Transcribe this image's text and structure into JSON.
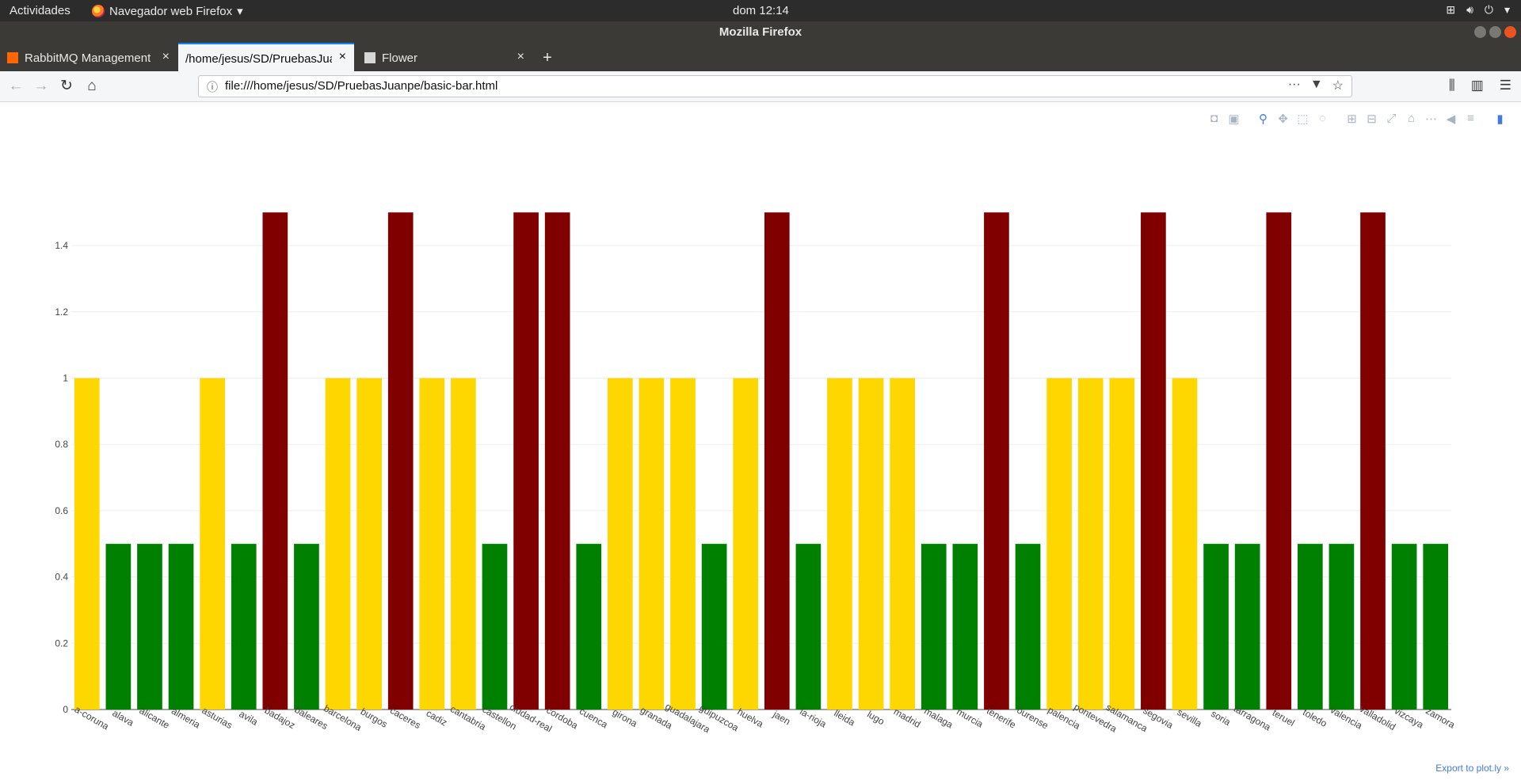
{
  "system_bar": {
    "activities": "Actividades",
    "app_name": "Navegador web Firefox",
    "app_caret": "▾",
    "clock": "dom 12:14"
  },
  "window": {
    "title": "Mozilla Firefox"
  },
  "tabs": [
    {
      "label": "RabbitMQ Management",
      "icon": "rabbitmq-icon"
    },
    {
      "label": "/home/jesus/SD/PruebasJuanpe/basic-bar.html",
      "icon": "none",
      "active": true
    },
    {
      "label": "Flower",
      "icon": "celery-icon"
    }
  ],
  "new_tab": "+",
  "close_tab": "×",
  "navigation": {
    "url": "file:///home/jesus/SD/PruebasJuanpe/basic-bar.html"
  },
  "plot": {
    "export_link": "Export to plot.ly »"
  },
  "colors": {
    "yellow": "#ffd700",
    "green": "#008000",
    "dark_red": "#800000",
    "accent": "#447adb"
  },
  "chart_data": {
    "type": "bar",
    "title": "",
    "xlabel": "",
    "ylabel": "",
    "ylim": [
      0,
      1.5
    ],
    "yticks": [
      0,
      0.2,
      0.4,
      0.6,
      0.8,
      1,
      1.2,
      1.4
    ],
    "ytick_labels": [
      "0",
      "0.2",
      "0.4",
      "0.6",
      "0.8",
      "1",
      "1.2",
      "1.4"
    ],
    "grid": true,
    "categories": [
      "a-coruna",
      "alava",
      "alicante",
      "almeria",
      "asturias",
      "avila",
      "badajoz",
      "baleares",
      "barcelona",
      "burgos",
      "caceres",
      "cadiz",
      "cantabria",
      "castellon",
      "ciudad-real",
      "cordoba",
      "cuenca",
      "girona",
      "granada",
      "guadalajara",
      "guipuzcoa",
      "huelva",
      "jaen",
      "la-rioja",
      "lleida",
      "lugo",
      "madrid",
      "malaga",
      "murcia",
      "tenerife",
      "ourense",
      "palencia",
      "pontevedra",
      "salamanca",
      "segovia",
      "sevilla",
      "soria",
      "tarragona",
      "teruel",
      "toledo",
      "valencia",
      "valladolid",
      "vizcaya",
      "zamora"
    ],
    "values": [
      1,
      0.5,
      0.5,
      0.5,
      1,
      0.5,
      1.5,
      0.5,
      1,
      1,
      1.5,
      1,
      1,
      0.5,
      1.5,
      1.5,
      0.5,
      1,
      1,
      1,
      0.5,
      1,
      1.5,
      0.5,
      1,
      1,
      1,
      0.5,
      0.5,
      1.5,
      0.5,
      1,
      1,
      1,
      1.5,
      1,
      0.5,
      0.5,
      1.5,
      0.5,
      0.5,
      1.5,
      0.5,
      0.5
    ],
    "bar_colors": [
      "#ffd700",
      "#008000",
      "#008000",
      "#008000",
      "#ffd700",
      "#008000",
      "#800000",
      "#008000",
      "#ffd700",
      "#ffd700",
      "#800000",
      "#ffd700",
      "#ffd700",
      "#008000",
      "#800000",
      "#800000",
      "#008000",
      "#ffd700",
      "#ffd700",
      "#ffd700",
      "#008000",
      "#ffd700",
      "#800000",
      "#008000",
      "#ffd700",
      "#ffd700",
      "#ffd700",
      "#008000",
      "#008000",
      "#800000",
      "#008000",
      "#ffd700",
      "#ffd700",
      "#ffd700",
      "#800000",
      "#ffd700",
      "#008000",
      "#008000",
      "#800000",
      "#008000",
      "#008000",
      "#800000",
      "#008000",
      "#008000"
    ]
  }
}
